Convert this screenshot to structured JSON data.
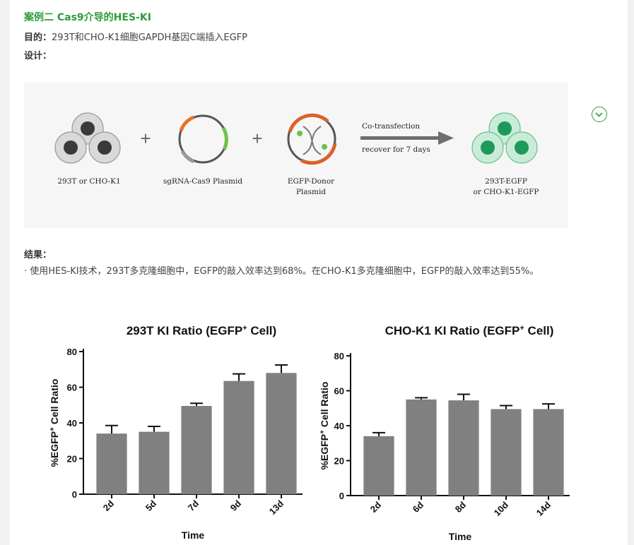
{
  "case_title": "案例二  Cas9介导的HES-KI",
  "purpose": {
    "label": "目的：",
    "text": "293T和CHO-K1细胞GAPDH基因C端插入EGFP"
  },
  "design_label": "设计：",
  "figure": {
    "cells_label": "293T or CHO-K1",
    "plasmid_label": "sgRNA-Cas9 Plasmid",
    "donor_label_1": "EGFP-Donor",
    "donor_label_2": "Plasmid",
    "arrow_top": "Co-transfection",
    "arrow_bottom": "recover for 7 days",
    "result_label_1": "293T-EGFP",
    "result_label_2": "or CHO-K1-EGFP",
    "plus": "+",
    "colors": {
      "cell_dark": "#3a3a3a",
      "cell_green": "#1e9a58",
      "arrow": "#6e6e6e"
    }
  },
  "results_label": "结果：",
  "results_text": "·  使用HES-KI技术，293T多克隆细胞中，EGFP的敲入效率达到68%。在CHO-K1多克隆细胞中，EGFP的敲入效率达到55%。",
  "chart_data": [
    {
      "type": "bar",
      "title": "293T KI Ratio (EGFP",
      "title_sup": "+",
      "title_end": " Cell)",
      "xlabel": "Time",
      "ylabel": "%EGFP",
      "ylabel_sup": "+",
      "ylabel_end": " Cell Ratio",
      "categories": [
        "2d",
        "5d",
        "7d",
        "9d",
        "13d"
      ],
      "values": [
        34,
        35,
        49.5,
        63.5,
        68
      ],
      "errors": [
        4.5,
        3,
        1.5,
        4,
        4.5
      ],
      "ylim": [
        0,
        80
      ],
      "yticks": [
        0,
        20,
        40,
        60,
        80
      ],
      "bar_color": "#808080"
    },
    {
      "type": "bar",
      "title": "CHO-K1 KI Ratio (EGFP",
      "title_sup": "+",
      "title_end": " Cell)",
      "xlabel": "Time",
      "ylabel": "%EGFP",
      "ylabel_sup": "+",
      "ylabel_end": " Cell Ratio",
      "categories": [
        "2d",
        "6d",
        "8d",
        "10d",
        "14d"
      ],
      "values": [
        34,
        55,
        54.5,
        49.5,
        49.5
      ],
      "errors": [
        2,
        1,
        3.5,
        2,
        3
      ],
      "ylim": [
        0,
        80
      ],
      "yticks": [
        0,
        20,
        40,
        60,
        80
      ],
      "bar_color": "#808080"
    }
  ]
}
